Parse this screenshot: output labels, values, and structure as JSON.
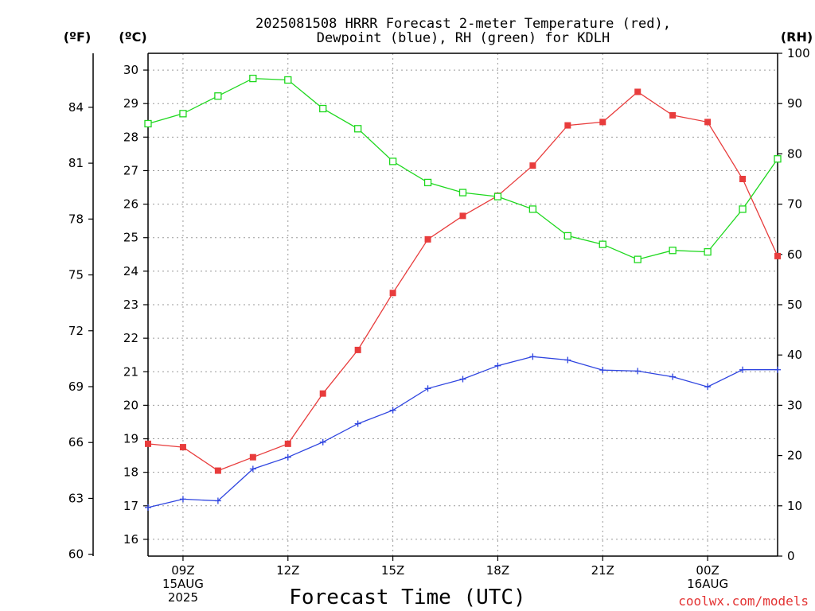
{
  "chart_data": {
    "type": "line",
    "title": [
      "2025081508 HRRR Forecast 2-meter Temperature (red),",
      "Dewpoint (blue), RH (green) for KDLH"
    ],
    "xlabel": "Forecast Time (UTC)",
    "credit": "coolwx.com/models",
    "units": {
      "fahrenheit": "(ºF)",
      "celsius": "(ºC)",
      "rh": "(RH)"
    },
    "x": [
      8,
      9,
      10,
      11,
      12,
      13,
      14,
      15,
      16,
      17,
      18,
      19,
      20,
      21,
      22,
      23,
      24,
      25,
      26
    ],
    "x_ticks": [
      {
        "x": 9,
        "label": [
          "09Z",
          "15AUG",
          "2025"
        ]
      },
      {
        "x": 12,
        "label": [
          "12Z"
        ]
      },
      {
        "x": 15,
        "label": [
          "15Z"
        ]
      },
      {
        "x": 18,
        "label": [
          "18Z"
        ]
      },
      {
        "x": 21,
        "label": [
          "21Z"
        ]
      },
      {
        "x": 24,
        "label": [
          "00Z",
          "16AUG"
        ]
      }
    ],
    "x_range": [
      8,
      26
    ],
    "y_celsius_range": [
      15.5,
      30.5
    ],
    "y_celsius_ticks": [
      16,
      17,
      18,
      19,
      20,
      21,
      22,
      23,
      24,
      25,
      26,
      27,
      28,
      29,
      30
    ],
    "y_fahrenheit_ticks": [
      60,
      63,
      66,
      69,
      72,
      75,
      78,
      81,
      84
    ],
    "y_rh_range": [
      0,
      100
    ],
    "y_rh_ticks": [
      0,
      10,
      20,
      30,
      40,
      50,
      60,
      70,
      80,
      90,
      100
    ],
    "grid": true,
    "series": [
      {
        "name": "Temperature",
        "axis": "celsius",
        "color": "#e83c3c",
        "marker": "filled-square",
        "values": [
          18.85,
          18.75,
          18.05,
          18.45,
          18.85,
          20.35,
          21.65,
          23.35,
          24.95,
          25.65,
          26.25,
          27.15,
          28.35,
          28.45,
          29.35,
          28.65,
          28.45,
          26.75,
          24.45
        ]
      },
      {
        "name": "Dewpoint",
        "axis": "celsius",
        "color": "#2f45e0",
        "marker": "plus",
        "values": [
          16.95,
          17.2,
          17.15,
          18.1,
          18.45,
          18.9,
          19.45,
          19.85,
          20.5,
          20.78,
          21.18,
          21.45,
          21.35,
          21.05,
          21.02,
          20.85,
          20.55,
          21.06,
          21.06
        ]
      },
      {
        "name": "RH",
        "axis": "rh",
        "color": "#1ed81e",
        "marker": "open-square",
        "values": [
          86,
          88,
          91.5,
          95,
          94.7,
          89,
          85,
          78.5,
          74.3,
          72.3,
          71.5,
          69,
          63.7,
          62,
          59,
          60.8,
          60.5,
          69,
          79
        ]
      }
    ]
  }
}
